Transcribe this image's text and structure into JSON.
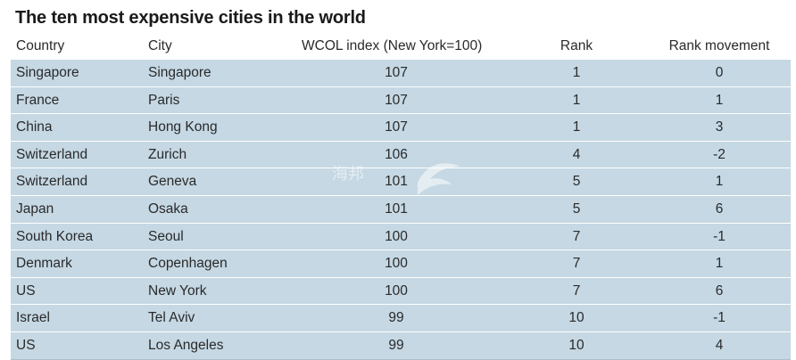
{
  "title": "The ten most expensive cities in the world",
  "columns": {
    "country": "Country",
    "city": "City",
    "index": "WCOL index (New York=100)",
    "rank": "Rank",
    "movement": "Rank movement"
  },
  "rows": [
    {
      "country": "Singapore",
      "city": "Singapore",
      "index": "107",
      "rank": "1",
      "movement": "0"
    },
    {
      "country": "France",
      "city": "Paris",
      "index": "107",
      "rank": "1",
      "movement": "1"
    },
    {
      "country": "China",
      "city": "Hong Kong",
      "index": "107",
      "rank": "1",
      "movement": "3"
    },
    {
      "country": "Switzerland",
      "city": "Zurich",
      "index": "106",
      "rank": "4",
      "movement": "-2"
    },
    {
      "country": "Switzerland",
      "city": "Geneva",
      "index": "101",
      "rank": "5",
      "movement": "1"
    },
    {
      "country": "Japan",
      "city": "Osaka",
      "index": "101",
      "rank": "5",
      "movement": "6"
    },
    {
      "country": "South Korea",
      "city": "Seoul",
      "index": "100",
      "rank": "7",
      "movement": "-1"
    },
    {
      "country": "Denmark",
      "city": "Copenhagen",
      "index": "100",
      "rank": "7",
      "movement": "1"
    },
    {
      "country": "US",
      "city": "New York",
      "index": "100",
      "rank": "7",
      "movement": "6"
    },
    {
      "country": "Israel",
      "city": "Tel Aviv",
      "index": "99",
      "rank": "10",
      "movement": "-1"
    },
    {
      "country": "US",
      "city": "Los Angeles",
      "index": "99",
      "rank": "10",
      "movement": "4"
    }
  ],
  "colors": {
    "row_background": "#c5d8e4",
    "text": "#2a2a2a"
  },
  "watermark": {
    "icon": "bird-logo-icon",
    "text": "海邦"
  }
}
